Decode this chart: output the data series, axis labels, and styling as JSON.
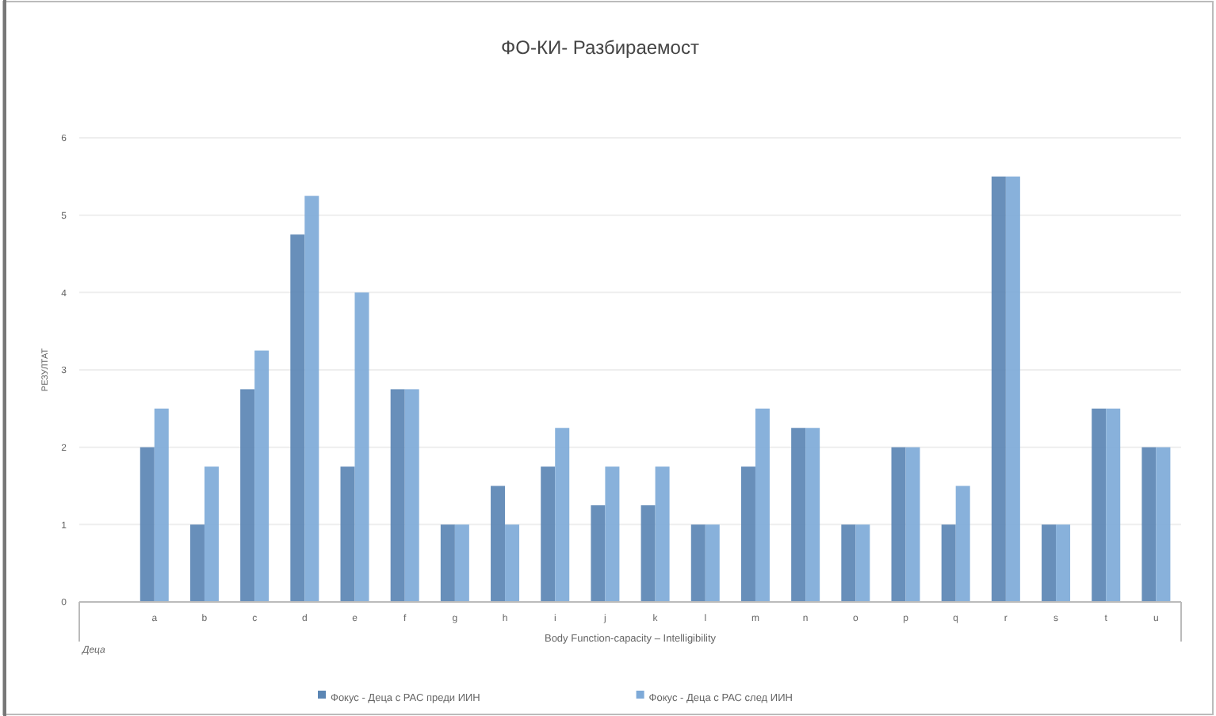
{
  "chart_data": {
    "type": "bar",
    "title": "ФО-КИ- Разбираемост",
    "xlabel": "Body Function-capacity – Intelligibility",
    "ylabel": "РЕЗУЛТАТ",
    "categories": [
      null,
      "a",
      "b",
      "c",
      "d",
      "e",
      "f",
      "g",
      "h",
      "i",
      "j",
      "k",
      "l",
      "m",
      "n",
      "o",
      "p",
      "q",
      "r",
      "s",
      "t",
      "u"
    ],
    "series": [
      {
        "name": "Фокус - Деца с РАС преди ИИН",
        "color": "#5b86b4",
        "values": [
          null,
          2,
          1,
          2.75,
          4.75,
          1.75,
          2.75,
          1,
          1.5,
          1.75,
          1.25,
          1.25,
          1,
          1.75,
          2.25,
          1,
          2,
          1,
          5.5,
          1,
          2.5,
          2
        ]
      },
      {
        "name": "Фокус - Деца с РАС след ИИН",
        "color": "#7eaad8",
        "values": [
          null,
          2.5,
          1.75,
          3.25,
          5.25,
          4,
          2.75,
          1,
          1,
          2.25,
          1.75,
          1.75,
          1,
          2.5,
          2.25,
          1,
          2,
          1.5,
          5.5,
          1,
          2.5,
          2
        ]
      }
    ],
    "ylim": [
      0,
      6
    ],
    "yticks": [
      0,
      1,
      2,
      3,
      4,
      5,
      6
    ],
    "grid": "y",
    "legend": "bottom",
    "annotations": [
      "Деца"
    ]
  }
}
